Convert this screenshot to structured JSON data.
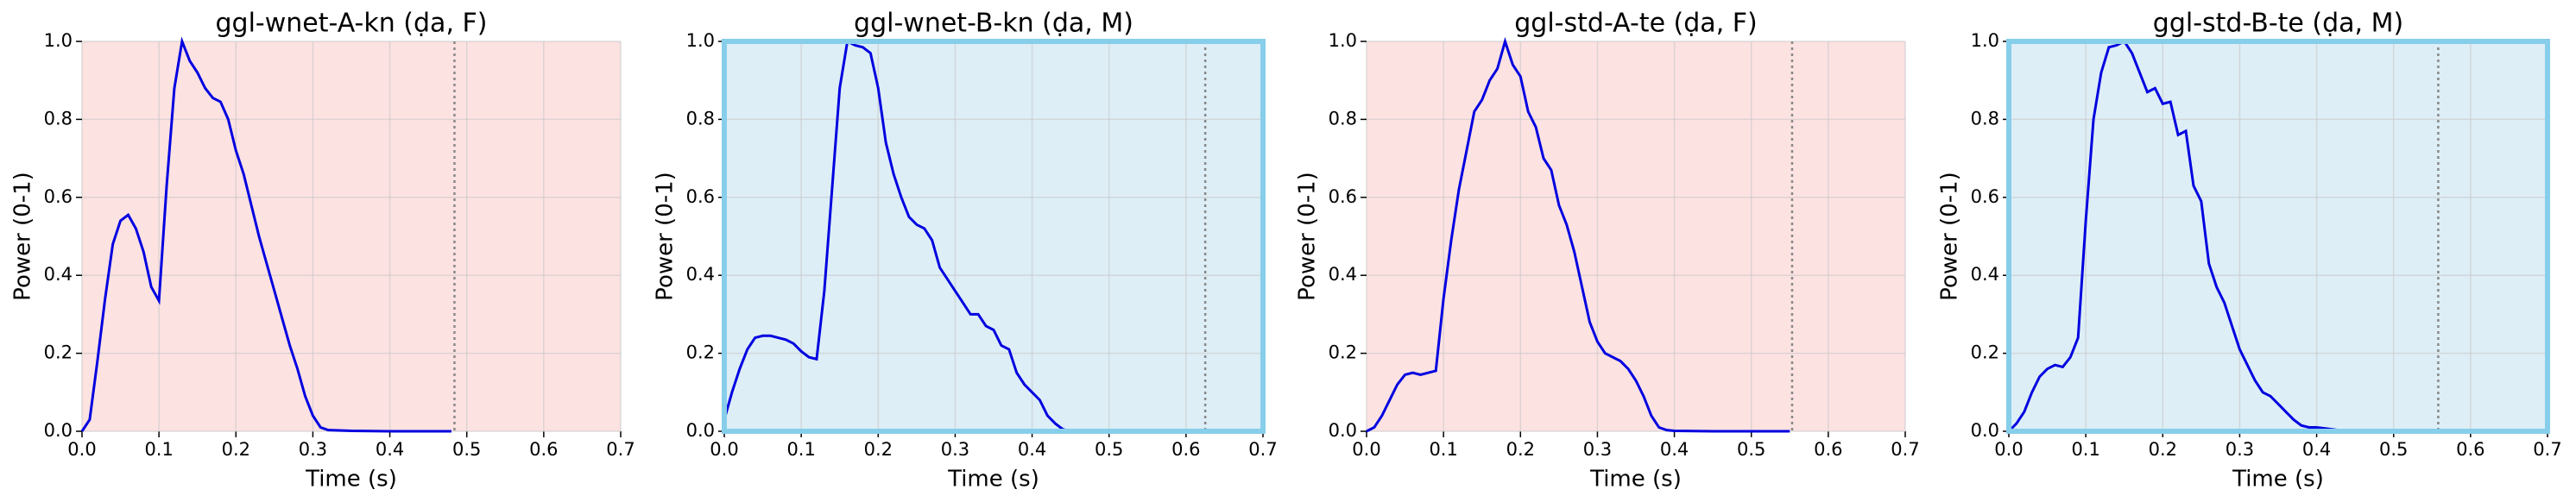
{
  "chart_data": [
    {
      "type": "line",
      "title": "ggl-wnet-A-kn (ḍa, F)",
      "xlabel": "Time (s)",
      "ylabel": "Power (0-1)",
      "x": [
        0,
        0.01,
        0.02,
        0.03,
        0.04,
        0.05,
        0.06,
        0.07,
        0.08,
        0.09,
        0.1,
        0.11,
        0.12,
        0.13,
        0.14,
        0.15,
        0.16,
        0.17,
        0.18,
        0.19,
        0.2,
        0.21,
        0.22,
        0.23,
        0.24,
        0.25,
        0.26,
        0.27,
        0.28,
        0.29,
        0.3,
        0.31,
        0.32,
        0.35,
        0.4,
        0.48
      ],
      "values": [
        0,
        0.03,
        0.18,
        0.34,
        0.48,
        0.54,
        0.555,
        0.52,
        0.46,
        0.37,
        0.335,
        0.63,
        0.88,
        1.0,
        0.95,
        0.92,
        0.88,
        0.855,
        0.845,
        0.8,
        0.72,
        0.66,
        0.58,
        0.5,
        0.43,
        0.36,
        0.29,
        0.22,
        0.16,
        0.09,
        0.04,
        0.01,
        0.003,
        0.001,
        0,
        0
      ],
      "color": "#0000e0",
      "background": "#fde2e2",
      "vline": 0.484,
      "xlim": [
        0,
        0.7
      ],
      "xticks": [
        {
          "value": 0,
          "label": "0.0"
        },
        0.1,
        0.2,
        0.3,
        0.4,
        0.5,
        0.6,
        0.7
      ],
      "ylim": [
        0,
        1
      ],
      "yticks": [
        {
          "value": 0,
          "label": "0.0"
        },
        0.2,
        0.4,
        0.6,
        0.8,
        {
          "value": 1,
          "label": "1.0"
        }
      ],
      "grid": true
    },
    {
      "type": "line",
      "title": "ggl-wnet-B-kn (ḍa, M)",
      "xlabel": "Time (s)",
      "ylabel": "Power (0-1)",
      "x": [
        0,
        0.01,
        0.02,
        0.03,
        0.04,
        0.05,
        0.06,
        0.07,
        0.08,
        0.09,
        0.1,
        0.11,
        0.12,
        0.13,
        0.14,
        0.15,
        0.16,
        0.17,
        0.18,
        0.19,
        0.2,
        0.21,
        0.22,
        0.23,
        0.24,
        0.25,
        0.26,
        0.27,
        0.28,
        0.29,
        0.3,
        0.31,
        0.32,
        0.33,
        0.34,
        0.35,
        0.36,
        0.37,
        0.38,
        0.39,
        0.4,
        0.41,
        0.42,
        0.43,
        0.44,
        0.45
      ],
      "values": [
        0.03,
        0.1,
        0.16,
        0.21,
        0.24,
        0.245,
        0.245,
        0.24,
        0.235,
        0.225,
        0.205,
        0.19,
        0.185,
        0.36,
        0.62,
        0.88,
        1.0,
        0.99,
        0.985,
        0.97,
        0.88,
        0.74,
        0.66,
        0.6,
        0.55,
        0.53,
        0.52,
        0.49,
        0.42,
        0.39,
        0.36,
        0.33,
        0.3,
        0.3,
        0.27,
        0.26,
        0.22,
        0.21,
        0.15,
        0.12,
        0.1,
        0.08,
        0.04,
        0.02,
        0.005,
        0
      ],
      "color": "#0000e0",
      "background": "#ddeef6",
      "frame": "#87ceeb",
      "vline": 0.625,
      "xlim": [
        0,
        0.7
      ],
      "xticks": [
        {
          "value": 0,
          "label": "0.0"
        },
        0.1,
        0.2,
        0.3,
        0.4,
        0.5,
        0.6,
        0.7
      ],
      "ylim": [
        0,
        1
      ],
      "yticks": [
        {
          "value": 0,
          "label": "0.0"
        },
        0.2,
        0.4,
        0.6,
        0.8,
        {
          "value": 1,
          "label": "1.0"
        }
      ],
      "grid": true
    },
    {
      "type": "line",
      "title": "ggl-std-A-te (ḍa, F)",
      "xlabel": "Time (s)",
      "ylabel": "Power (0-1)",
      "x": [
        0,
        0.01,
        0.02,
        0.03,
        0.04,
        0.05,
        0.06,
        0.07,
        0.08,
        0.09,
        0.1,
        0.11,
        0.12,
        0.13,
        0.14,
        0.15,
        0.16,
        0.17,
        0.18,
        0.19,
        0.2,
        0.21,
        0.22,
        0.23,
        0.24,
        0.25,
        0.26,
        0.27,
        0.28,
        0.29,
        0.3,
        0.31,
        0.32,
        0.33,
        0.34,
        0.35,
        0.36,
        0.37,
        0.38,
        0.39,
        0.4,
        0.45,
        0.5,
        0.55
      ],
      "values": [
        0,
        0.01,
        0.04,
        0.08,
        0.12,
        0.145,
        0.15,
        0.145,
        0.15,
        0.155,
        0.34,
        0.49,
        0.62,
        0.72,
        0.82,
        0.85,
        0.9,
        0.93,
        1.0,
        0.94,
        0.91,
        0.82,
        0.78,
        0.7,
        0.67,
        0.58,
        0.53,
        0.46,
        0.37,
        0.28,
        0.23,
        0.2,
        0.19,
        0.18,
        0.16,
        0.13,
        0.09,
        0.04,
        0.01,
        0.003,
        0.001,
        0,
        0,
        0
      ],
      "color": "#0000e0",
      "background": "#fde2e2",
      "vline": 0.553,
      "xlim": [
        0,
        0.7
      ],
      "xticks": [
        {
          "value": 0,
          "label": "0.0"
        },
        0.1,
        0.2,
        0.3,
        0.4,
        0.5,
        0.6,
        0.7
      ],
      "ylim": [
        0,
        1
      ],
      "yticks": [
        {
          "value": 0,
          "label": "0.0"
        },
        0.2,
        0.4,
        0.6,
        0.8,
        {
          "value": 1,
          "label": "1.0"
        }
      ],
      "grid": true
    },
    {
      "type": "line",
      "title": "ggl-std-B-te (ḍa, M)",
      "xlabel": "Time (s)",
      "ylabel": "Power (0-1)",
      "x": [
        0,
        0.01,
        0.02,
        0.03,
        0.04,
        0.05,
        0.06,
        0.07,
        0.08,
        0.09,
        0.1,
        0.11,
        0.12,
        0.13,
        0.14,
        0.15,
        0.16,
        0.17,
        0.18,
        0.19,
        0.2,
        0.21,
        0.22,
        0.23,
        0.24,
        0.25,
        0.26,
        0.27,
        0.28,
        0.29,
        0.3,
        0.31,
        0.32,
        0.33,
        0.34,
        0.35,
        0.36,
        0.37,
        0.38,
        0.39,
        0.4,
        0.42,
        0.44
      ],
      "values": [
        0,
        0.02,
        0.05,
        0.1,
        0.14,
        0.16,
        0.17,
        0.165,
        0.19,
        0.24,
        0.54,
        0.8,
        0.92,
        0.985,
        0.99,
        1.0,
        0.97,
        0.92,
        0.87,
        0.88,
        0.84,
        0.845,
        0.76,
        0.77,
        0.63,
        0.59,
        0.43,
        0.37,
        0.33,
        0.27,
        0.21,
        0.17,
        0.13,
        0.1,
        0.09,
        0.07,
        0.05,
        0.03,
        0.015,
        0.01,
        0.01,
        0.005,
        0
      ],
      "color": "#0000e0",
      "background": "#ddeef6",
      "frame": "#87ceeb",
      "vline": 0.558,
      "xlim": [
        0,
        0.7
      ],
      "xticks": [
        {
          "value": 0,
          "label": "0.0"
        },
        0.1,
        0.2,
        0.3,
        0.4,
        0.5,
        0.6,
        0.7
      ],
      "ylim": [
        0,
        1
      ],
      "yticks": [
        {
          "value": 0,
          "label": "0.0"
        },
        0.2,
        0.4,
        0.6,
        0.8,
        {
          "value": 1,
          "label": "1.0"
        }
      ],
      "grid": true
    }
  ]
}
